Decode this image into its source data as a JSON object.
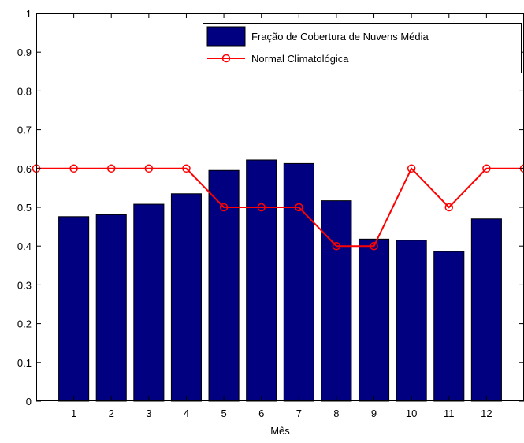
{
  "chart_data": {
    "type": "bar",
    "xlabel": "Mês",
    "ylabel": "",
    "ylim": [
      0,
      1
    ],
    "xlim": [
      0,
      13
    ],
    "yticks": [
      "0",
      "0.1",
      "0.2",
      "0.3",
      "0.4",
      "0.5",
      "0.6",
      "0.7",
      "0.8",
      "0.9",
      "1"
    ],
    "categories": [
      "1",
      "2",
      "3",
      "4",
      "5",
      "6",
      "7",
      "8",
      "9",
      "10",
      "11",
      "12"
    ],
    "grid": false,
    "legend_position": "top-right",
    "series": [
      {
        "name": "Fração de Cobertura de Nuvens Média",
        "kind": "bar",
        "color": "#000080",
        "values": [
          0.476,
          0.481,
          0.508,
          0.535,
          0.595,
          0.622,
          0.613,
          0.517,
          0.418,
          0.415,
          0.386,
          0.47
        ]
      },
      {
        "name": "Normal Climatológica",
        "kind": "line",
        "color": "#ff0000",
        "marker": "circle",
        "x": [
          0,
          1,
          2,
          3,
          4,
          5,
          6,
          7,
          8,
          9,
          10,
          11,
          12,
          13
        ],
        "values": [
          0.6,
          0.6,
          0.6,
          0.6,
          0.6,
          0.5,
          0.5,
          0.5,
          0.4,
          0.4,
          0.6,
          0.5,
          0.6,
          0.6
        ]
      }
    ]
  }
}
